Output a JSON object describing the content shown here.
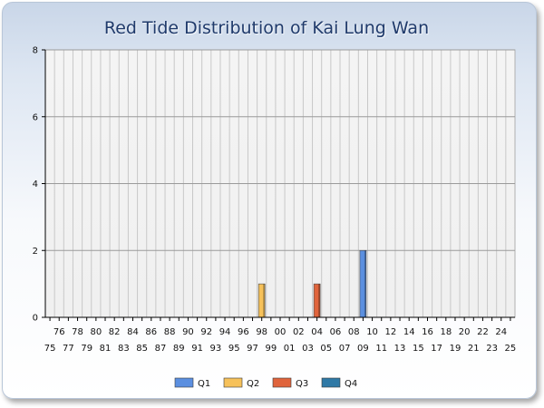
{
  "window": {
    "title": "Red Tide Distribution of Kai Lung Wan"
  },
  "chart_data": {
    "type": "bar",
    "title": "Red Tide Distribution of Kai Lung Wan",
    "xlabel": "",
    "ylabel": "",
    "ylim": [
      0,
      8
    ],
    "yticks": [
      "0",
      "2",
      "4",
      "6",
      "8"
    ],
    "grid": true,
    "legend_position": "bottom",
    "categories": [
      "75",
      "76",
      "77",
      "78",
      "79",
      "80",
      "81",
      "82",
      "83",
      "84",
      "85",
      "86",
      "87",
      "88",
      "89",
      "90",
      "91",
      "92",
      "93",
      "94",
      "95",
      "96",
      "97",
      "98",
      "99",
      "00",
      "01",
      "02",
      "03",
      "04",
      "05",
      "06",
      "07",
      "08",
      "09",
      "10",
      "11",
      "12",
      "13",
      "14",
      "15",
      "16",
      "17",
      "18",
      "19",
      "20",
      "21",
      "22",
      "23",
      "24",
      "25"
    ],
    "series": [
      {
        "name": "Q1",
        "color": "#5b8fe0",
        "values": [
          0,
          0,
          0,
          0,
          0,
          0,
          0,
          0,
          0,
          0,
          0,
          0,
          0,
          0,
          0,
          0,
          0,
          0,
          0,
          0,
          0,
          0,
          0,
          0,
          0,
          0,
          0,
          0,
          0,
          0,
          0,
          0,
          0,
          0,
          2,
          0,
          0,
          0,
          0,
          0,
          0,
          0,
          0,
          0,
          0,
          0,
          0,
          0,
          0,
          0,
          0
        ]
      },
      {
        "name": "Q2",
        "color": "#f6c15a",
        "values": [
          0,
          0,
          0,
          0,
          0,
          0,
          0,
          0,
          0,
          0,
          0,
          0,
          0,
          0,
          0,
          0,
          0,
          0,
          0,
          0,
          0,
          0,
          0,
          1,
          0,
          0,
          0,
          0,
          0,
          0,
          0,
          0,
          0,
          0,
          0,
          0,
          0,
          0,
          0,
          0,
          0,
          0,
          0,
          0,
          0,
          0,
          0,
          0,
          0,
          0,
          0
        ]
      },
      {
        "name": "Q3",
        "color": "#e0643c",
        "values": [
          0,
          0,
          0,
          0,
          0,
          0,
          0,
          0,
          0,
          0,
          0,
          0,
          0,
          0,
          0,
          0,
          0,
          0,
          0,
          0,
          0,
          0,
          0,
          0,
          0,
          0,
          0,
          0,
          0,
          1,
          0,
          0,
          0,
          0,
          0,
          0,
          0,
          0,
          0,
          0,
          0,
          0,
          0,
          0,
          0,
          0,
          0,
          0,
          0,
          0,
          0
        ]
      },
      {
        "name": "Q4",
        "color": "#2f79a6",
        "values": [
          0,
          0,
          0,
          0,
          0,
          0,
          0,
          0,
          0,
          0,
          0,
          0,
          0,
          0,
          0,
          0,
          0,
          0,
          0,
          0,
          0,
          0,
          0,
          0,
          0,
          0,
          0,
          0,
          0,
          0,
          0,
          0,
          0,
          0,
          0,
          0,
          0,
          0,
          0,
          0,
          0,
          0,
          0,
          0,
          0,
          0,
          0,
          0,
          0,
          0,
          0
        ]
      }
    ]
  }
}
